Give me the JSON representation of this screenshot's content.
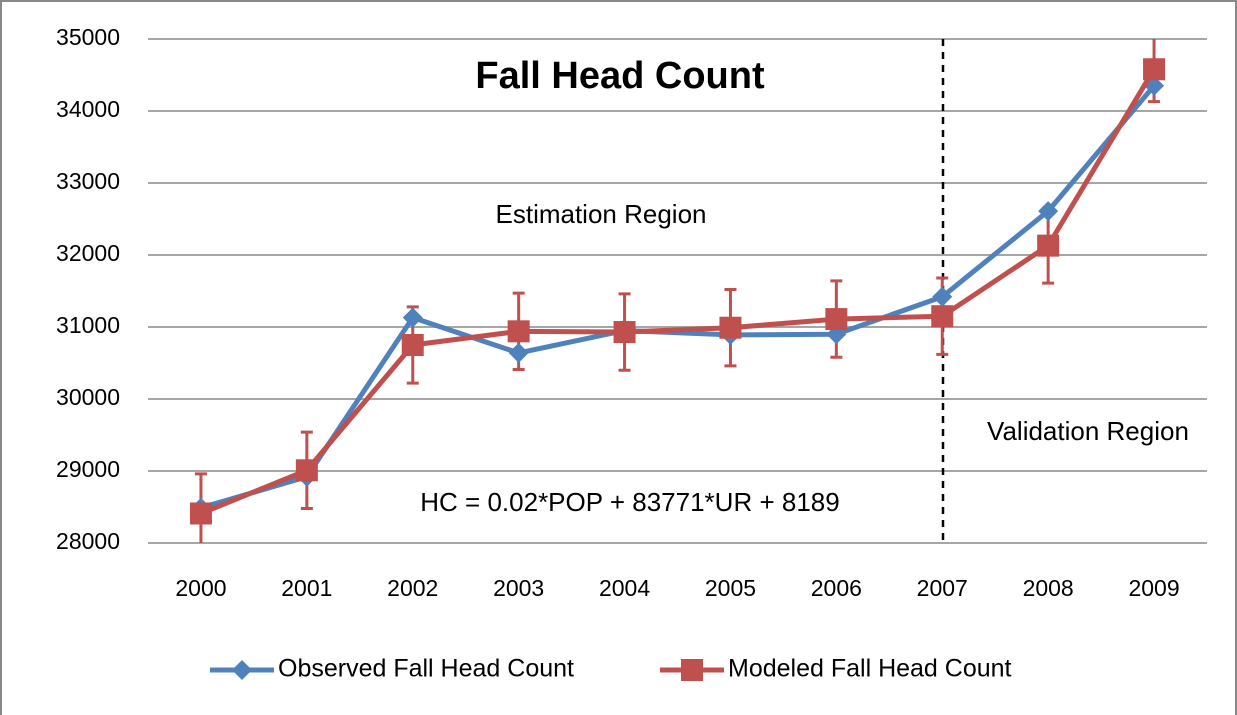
{
  "chart_data": {
    "type": "line",
    "title": "Fall Head Count",
    "annotations": [
      "Estimation Region",
      "Validation Region",
      "HC = 0.02*POP + 83771*UR + 8189"
    ],
    "categories": [
      "2000",
      "2001",
      "2002",
      "2003",
      "2004",
      "2005",
      "2006",
      "2007",
      "2008",
      "2009"
    ],
    "series": [
      {
        "name": "Observed Fall Head Count",
        "color": "#4f81bd",
        "marker": "diamond",
        "values": [
          28490,
          28920,
          31130,
          30640,
          30950,
          30890,
          30900,
          31420,
          32610,
          34350
        ]
      },
      {
        "name": "Modeled Fall Head Count",
        "color": "#c0504d",
        "marker": "square",
        "values": [
          28410,
          29010,
          30750,
          30940,
          30930,
          30990,
          31110,
          31150,
          32130,
          34580
        ],
        "errors": [
          550,
          530,
          530,
          530,
          530,
          530,
          530,
          530,
          520,
          450
        ]
      }
    ],
    "ylim": [
      28000,
      35000
    ],
    "yticks": [
      28000,
      29000,
      30000,
      31000,
      32000,
      33000,
      34000,
      35000
    ],
    "grid": true
  }
}
